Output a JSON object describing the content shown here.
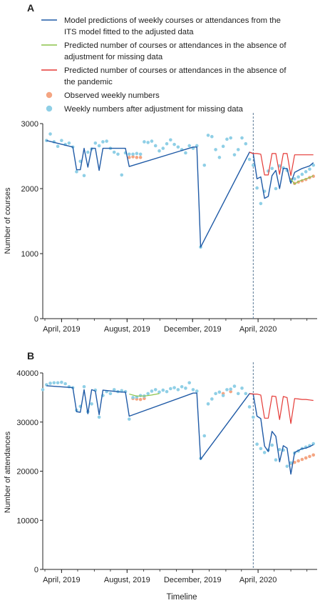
{
  "legend": {
    "items": [
      {
        "kind": "line",
        "color": "#1f5aa6",
        "label_lines": [
          "Model predictions of weekly courses or attendances from the",
          "ITS model fitted to the adjusted data"
        ]
      },
      {
        "kind": "line",
        "color": "#8bc34a",
        "label_lines": [
          "Predicted number of courses or attendances in the absence of",
          "adjustment for missing data"
        ]
      },
      {
        "kind": "line",
        "color": "#e53935",
        "label_lines": [
          "Predicted number of courses or attendances in the absence of",
          "the pandemic"
        ]
      },
      {
        "kind": "dot",
        "color": "#f4a582",
        "label_lines": [
          "Observed weekly numbers"
        ]
      },
      {
        "kind": "dot",
        "color": "#8fcfe6",
        "label_lines": [
          "Weekly numbers after adjustment for missing data"
        ]
      }
    ]
  },
  "xlabel": "Timeline",
  "chart_data": [
    {
      "type": "line",
      "panel_label": "A",
      "ylabel": "Number of courses",
      "ylim": [
        0,
        3000
      ],
      "yticks": [
        0,
        1000,
        2000,
        3000
      ],
      "ytick_labels": [
        "0",
        "1000",
        "2000",
        "3000"
      ],
      "xlim": [
        "2019-02-25",
        "2020-07-20"
      ],
      "xticks": [
        "2019-04-01",
        "2019-08-01",
        "2019-12-01",
        "2020-04-01"
      ],
      "xtick_labels": [
        "April, 2019",
        "August, 2019",
        "December, 2019",
        "April, 2020"
      ],
      "intervention_line_x": "2020-03-23",
      "grid": false,
      "series": [
        {
          "name": "Model predictions of weekly courses or attendances from the ITS model fitted to the adjusted data",
          "color": "#1f5aa6",
          "x": [
            "2019-03-04",
            "2019-04-22",
            "2019-04-29",
            "2019-05-06",
            "2019-05-13",
            "2019-05-20",
            "2019-05-27",
            "2019-06-03",
            "2019-06-10",
            "2019-06-17",
            "2019-07-22",
            "2019-07-29",
            "2019-08-05",
            "2019-12-02",
            "2019-12-09",
            "2019-12-16",
            "2020-03-16",
            "2020-03-23",
            "2020-03-30",
            "2020-04-06",
            "2020-04-13",
            "2020-04-20",
            "2020-04-27",
            "2020-05-04",
            "2020-05-11",
            "2020-05-18",
            "2020-05-25",
            "2020-06-01",
            "2020-06-08",
            "2020-06-15",
            "2020-06-22",
            "2020-06-29",
            "2020-07-06",
            "2020-07-13"
          ],
          "values": [
            2740,
            2640,
            2290,
            2290,
            2620,
            2330,
            2620,
            2620,
            2280,
            2620,
            2620,
            2620,
            2340,
            2640,
            2640,
            1100,
            2560,
            2540,
            2150,
            2180,
            1850,
            1880,
            2200,
            2280,
            2000,
            2310,
            2310,
            2080,
            2250,
            2280,
            2310,
            2330,
            2350,
            2400
          ]
        },
        {
          "name": "Predicted number of courses or attendances in the absence of adjustment for missing data",
          "color": "#8bc34a",
          "x": [
            "2020-06-01",
            "2020-06-08",
            "2020-06-15",
            "2020-06-22",
            "2020-06-29",
            "2020-07-06",
            "2020-07-13"
          ],
          "values": [
            2150,
            2070,
            2110,
            2130,
            2150,
            2170,
            2200
          ]
        },
        {
          "name": "Predicted number of courses or attendances in the absence of the pandemic",
          "color": "#e53935",
          "x": [
            "2020-03-16",
            "2020-03-23",
            "2020-03-30",
            "2020-04-06",
            "2020-04-13",
            "2020-04-20",
            "2020-04-27",
            "2020-05-04",
            "2020-05-11",
            "2020-05-18",
            "2020-05-25",
            "2020-06-01",
            "2020-06-08",
            "2020-06-15",
            "2020-06-22",
            "2020-06-29",
            "2020-07-06",
            "2020-07-13"
          ],
          "values": [
            2560,
            2540,
            2540,
            2530,
            2210,
            2210,
            2540,
            2540,
            2220,
            2540,
            2540,
            2200,
            2520,
            2520,
            2520,
            2520,
            2520,
            2520
          ]
        }
      ],
      "points": [
        {
          "name": "Observed weekly numbers",
          "color": "#f4a582",
          "x": [
            "2019-08-05",
            "2019-08-12",
            "2019-08-19",
            "2019-08-26",
            "2020-06-01",
            "2020-06-08",
            "2020-06-15",
            "2020-06-22",
            "2020-06-29",
            "2020-07-06",
            "2020-07-13"
          ],
          "values": [
            2480,
            2490,
            2480,
            2480,
            2140,
            2080,
            2100,
            2120,
            2140,
            2170,
            2190
          ]
        },
        {
          "name": "Weekly numbers after adjustment for missing data",
          "color": "#8fcfe6",
          "x": [
            "2019-03-04",
            "2019-03-11",
            "2019-03-18",
            "2019-03-25",
            "2019-04-01",
            "2019-04-08",
            "2019-04-15",
            "2019-04-22",
            "2019-04-29",
            "2019-05-06",
            "2019-05-13",
            "2019-05-20",
            "2019-05-27",
            "2019-06-03",
            "2019-06-10",
            "2019-06-17",
            "2019-06-24",
            "2019-07-01",
            "2019-07-08",
            "2019-07-15",
            "2019-07-22",
            "2019-07-29",
            "2019-08-05",
            "2019-08-12",
            "2019-08-19",
            "2019-08-26",
            "2019-09-02",
            "2019-09-09",
            "2019-09-16",
            "2019-09-23",
            "2019-09-30",
            "2019-10-07",
            "2019-10-14",
            "2019-10-21",
            "2019-10-28",
            "2019-11-04",
            "2019-11-11",
            "2019-11-18",
            "2019-11-25",
            "2019-12-02",
            "2019-12-09",
            "2019-12-16",
            "2019-12-23",
            "2019-12-30",
            "2020-01-06",
            "2020-01-13",
            "2020-01-20",
            "2020-01-27",
            "2020-02-03",
            "2020-02-10",
            "2020-02-17",
            "2020-02-24",
            "2020-03-02",
            "2020-03-09",
            "2020-03-16",
            "2020-03-23",
            "2020-03-30",
            "2020-04-06",
            "2020-04-13",
            "2020-04-20",
            "2020-04-27",
            "2020-05-04",
            "2020-05-11",
            "2020-05-18",
            "2020-05-25",
            "2020-06-01",
            "2020-06-08",
            "2020-06-15",
            "2020-06-22",
            "2020-06-29",
            "2020-07-06",
            "2020-07-13"
          ],
          "values": [
            2740,
            2840,
            2720,
            2650,
            2740,
            2680,
            2700,
            2640,
            2260,
            2420,
            2200,
            2560,
            2610,
            2700,
            2660,
            2720,
            2730,
            2620,
            2560,
            2530,
            2210,
            2550,
            2530,
            2530,
            2540,
            2530,
            2720,
            2710,
            2730,
            2660,
            2580,
            2620,
            2690,
            2750,
            2680,
            2640,
            2600,
            2550,
            2660,
            2620,
            2660,
            1100,
            2360,
            2820,
            2800,
            2600,
            2480,
            2650,
            2760,
            2780,
            2520,
            2600,
            2780,
            2690,
            2450,
            2360,
            2010,
            1770,
            1960,
            2270,
            2310,
            2000,
            2350,
            2320,
            2280,
            2120,
            2150,
            2180,
            2220,
            2260,
            2300,
            2360
          ]
        }
      ]
    },
    {
      "type": "line",
      "panel_label": "B",
      "ylabel": "Number of attendances",
      "ylim": [
        0,
        40000
      ],
      "yticks": [
        0,
        10000,
        20000,
        30000,
        40000
      ],
      "ytick_labels": [
        "0",
        "10000",
        "20000",
        "30000",
        "40000"
      ],
      "xlim": [
        "2019-02-25",
        "2020-07-20"
      ],
      "xticks": [
        "2019-04-01",
        "2019-08-01",
        "2019-12-01",
        "2020-04-01"
      ],
      "xtick_labels": [
        "April, 2019",
        "August, 2019",
        "December, 2019",
        "April, 2020"
      ],
      "intervention_line_x": "2020-03-23",
      "grid": false,
      "series": [
        {
          "name": "Model predictions of weekly courses or attendances from the ITS model fitted to the adjusted data",
          "color": "#1f5aa6",
          "x": [
            "2019-03-04",
            "2019-04-22",
            "2019-04-29",
            "2019-05-06",
            "2019-05-13",
            "2019-05-20",
            "2019-05-27",
            "2019-06-03",
            "2019-06-10",
            "2019-06-17",
            "2019-07-22",
            "2019-07-29",
            "2019-08-05",
            "2019-12-02",
            "2019-12-09",
            "2019-12-16",
            "2020-03-16",
            "2020-03-23",
            "2020-03-30",
            "2020-04-06",
            "2020-04-13",
            "2020-04-20",
            "2020-04-27",
            "2020-05-04",
            "2020-05-11",
            "2020-05-18",
            "2020-05-25",
            "2020-06-01",
            "2020-06-08",
            "2020-06-15",
            "2020-06-22",
            "2020-06-29",
            "2020-07-06",
            "2020-07-13"
          ],
          "values": [
            37400,
            37000,
            32100,
            32000,
            36600,
            31700,
            36600,
            36300,
            31500,
            36500,
            36100,
            36100,
            31200,
            35900,
            35900,
            22400,
            35800,
            35700,
            31200,
            30700,
            25100,
            24000,
            28100,
            27100,
            21900,
            25200,
            24700,
            19400,
            23800,
            24200,
            24600,
            24700,
            25000,
            25400
          ]
        },
        {
          "name": "Predicted number of courses or attendances in the absence of adjustment for missing data",
          "color": "#8bc34a",
          "x": [
            "2019-08-05",
            "2019-08-19",
            "2019-09-02",
            "2019-09-16",
            "2019-09-30"
          ],
          "values": [
            35700,
            35300,
            35300,
            35500,
            35800
          ]
        },
        {
          "name": "Predicted number of courses or attendances in the absence of the pandemic",
          "color": "#e53935",
          "x": [
            "2020-03-16",
            "2020-03-23",
            "2020-03-30",
            "2020-04-06",
            "2020-04-13",
            "2020-04-20",
            "2020-04-27",
            "2020-05-04",
            "2020-05-11",
            "2020-05-18",
            "2020-05-25",
            "2020-06-01",
            "2020-06-08",
            "2020-06-15",
            "2020-06-22",
            "2020-06-29",
            "2020-07-06",
            "2020-07-13"
          ],
          "values": [
            35800,
            35700,
            35700,
            35500,
            30800,
            30800,
            35300,
            35200,
            30500,
            35200,
            35000,
            29700,
            34800,
            34700,
            34600,
            34600,
            34500,
            34400
          ]
        }
      ],
      "points": [
        {
          "name": "Observed weekly numbers",
          "color": "#f4a582",
          "x": [
            "2019-08-12",
            "2019-08-19",
            "2019-08-26",
            "2019-09-02",
            "2020-01-27",
            "2020-02-10",
            "2020-06-01",
            "2020-06-08",
            "2020-06-15",
            "2020-06-22",
            "2020-06-29",
            "2020-07-06",
            "2020-07-13"
          ],
          "values": [
            34800,
            34700,
            34600,
            34800,
            35800,
            36200,
            21600,
            21800,
            22100,
            22400,
            22700,
            23000,
            23300
          ]
        },
        {
          "name": "Weekly numbers after adjustment for missing data",
          "color": "#8fcfe6",
          "x": [
            "2019-02-25",
            "2019-03-04",
            "2019-03-11",
            "2019-03-18",
            "2019-03-25",
            "2019-04-01",
            "2019-04-08",
            "2019-04-15",
            "2019-04-22",
            "2019-04-29",
            "2019-05-06",
            "2019-05-13",
            "2019-05-20",
            "2019-05-27",
            "2019-06-03",
            "2019-06-10",
            "2019-06-17",
            "2019-06-24",
            "2019-07-01",
            "2019-07-08",
            "2019-07-15",
            "2019-07-22",
            "2019-07-29",
            "2019-08-05",
            "2019-08-12",
            "2019-08-19",
            "2019-08-26",
            "2019-09-02",
            "2019-09-09",
            "2019-09-16",
            "2019-09-23",
            "2019-09-30",
            "2019-10-07",
            "2019-10-14",
            "2019-10-21",
            "2019-10-28",
            "2019-11-04",
            "2019-11-11",
            "2019-11-18",
            "2019-11-25",
            "2019-12-02",
            "2019-12-09",
            "2019-12-16",
            "2019-12-23",
            "2019-12-30",
            "2020-01-06",
            "2020-01-13",
            "2020-01-20",
            "2020-01-27",
            "2020-02-03",
            "2020-02-10",
            "2020-02-17",
            "2020-02-24",
            "2020-03-02",
            "2020-03-09",
            "2020-03-16",
            "2020-03-23",
            "2020-03-30",
            "2020-04-06",
            "2020-04-13",
            "2020-04-20",
            "2020-04-27",
            "2020-05-04",
            "2020-05-11",
            "2020-05-18",
            "2020-05-25",
            "2020-06-01",
            "2020-06-08",
            "2020-06-15",
            "2020-06-22",
            "2020-06-29",
            "2020-07-06",
            "2020-07-13"
          ],
          "values": [
            36600,
            37600,
            37900,
            38000,
            38000,
            38100,
            37800,
            37200,
            37000,
            32400,
            33200,
            37200,
            32100,
            33700,
            36500,
            31000,
            35400,
            36200,
            35800,
            36600,
            36200,
            36400,
            36200,
            30600,
            35000,
            35100,
            35400,
            35300,
            35800,
            36300,
            36600,
            36100,
            36500,
            36200,
            36800,
            37000,
            36600,
            37200,
            36900,
            38000,
            36600,
            36300,
            22600,
            27200,
            33700,
            34700,
            35800,
            36100,
            35400,
            36600,
            36700,
            37300,
            35800,
            36900,
            35800,
            33100,
            31000,
            25500,
            24600,
            23800,
            24300,
            25300,
            22300,
            24400,
            24300,
            21000,
            21700,
            23700,
            24100,
            24600,
            24900,
            25200,
            25600
          ]
        }
      ]
    }
  ]
}
